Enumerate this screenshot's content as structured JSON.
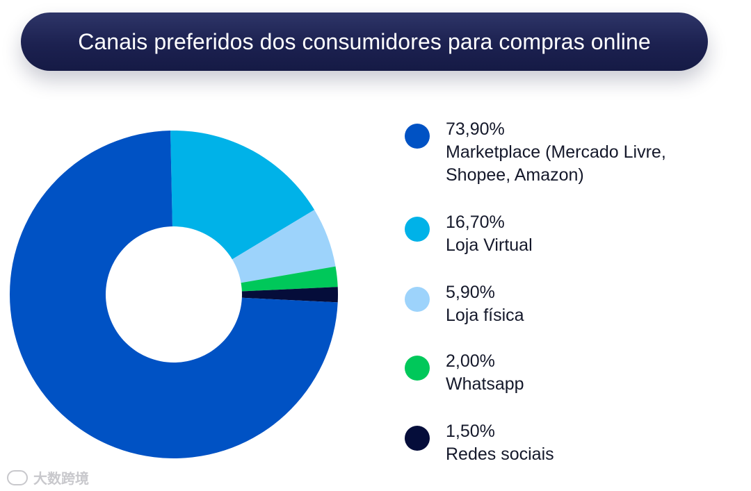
{
  "title": "Canais preferidos dos consumidores para compras online",
  "chart_data": {
    "type": "pie",
    "title": "Canais preferidos dos consumidores para compras online",
    "categories": [
      "Marketplace (Mercado Livre, Shopee, Amazon)",
      "Loja Virtual",
      "Loja física",
      "Whatsapp",
      "Redes sociais"
    ],
    "values": [
      73.9,
      16.7,
      5.9,
      2.0,
      1.5
    ],
    "value_labels": [
      "73,90%",
      "16,70%",
      "5,90%",
      "2,00%",
      "1,50%"
    ],
    "colors": [
      "#0052c4",
      "#00b2e8",
      "#9dd3fb",
      "#00c85a",
      "#050d3a"
    ],
    "donut": true,
    "legend": "right"
  },
  "legend": [
    {
      "value": "73,90%",
      "label_lines": [
        "Marketplace (Mercado Livre,",
        "Shopee, Amazon)"
      ],
      "color": "#0052c4"
    },
    {
      "value": "16,70%",
      "label_lines": [
        "Loja Virtual"
      ],
      "color": "#00b2e8"
    },
    {
      "value": "5,90%",
      "label_lines": [
        "Loja física"
      ],
      "color": "#9dd3fb"
    },
    {
      "value": "2,00%",
      "label_lines": [
        "Whatsapp"
      ],
      "color": "#00c85a"
    },
    {
      "value": "1,50%",
      "label_lines": [
        "Redes sociais"
      ],
      "color": "#050d3a"
    }
  ],
  "watermark": {
    "text": "大数跨境"
  }
}
